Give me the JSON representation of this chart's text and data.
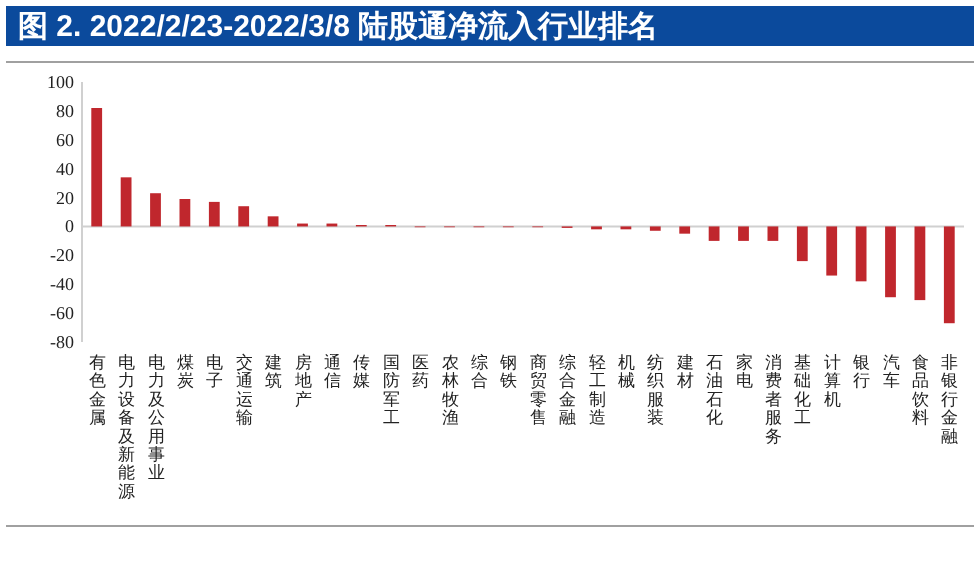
{
  "chart_data": {
    "type": "bar",
    "title": "图 2. 2022/2/23-2022/3/8 陆股通净流入行业排名",
    "categories": [
      "有色金属",
      "电力设备及新能源",
      "电力及公用事业",
      "煤炭",
      "电子",
      "交通运输",
      "建筑",
      "房地产",
      "通信",
      "传媒",
      "国防军工",
      "医药",
      "农林牧渔",
      "综合",
      "钢铁",
      "商贸零售",
      "综合金融",
      "轻工制造",
      "机械",
      "纺织服装",
      "建材",
      "石油石化",
      "家电",
      "消费者服务",
      "基础化工",
      "计算机",
      "银行",
      "汽车",
      "食品饮料",
      "非银行金融"
    ],
    "values": [
      82,
      34,
      23,
      19,
      17,
      14,
      7,
      2,
      2,
      1,
      1,
      0,
      0,
      0,
      0,
      0,
      -1,
      -2,
      -2,
      -3,
      -5,
      -10,
      -10,
      -10,
      -24,
      -34,
      -38,
      -49,
      -51,
      -67
    ],
    "color": "#c0272d",
    "ylim": [
      -80,
      100
    ],
    "yticks": [
      -80,
      -60,
      -40,
      -20,
      0,
      20,
      40,
      60,
      80,
      100
    ],
    "grid": false,
    "ref_lines": [
      {
        "axis": "y",
        "value": 0,
        "color": "#d0d0d0"
      }
    ]
  }
}
